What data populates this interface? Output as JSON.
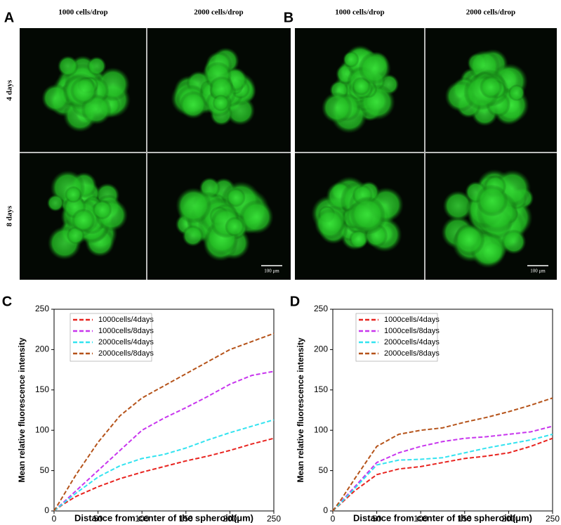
{
  "image_panels": [
    {
      "label": "A",
      "columns": [
        "1000 cells/drop",
        "2000 cells/drop"
      ],
      "rows": [
        "4 days",
        "8 days"
      ],
      "scale_bar": "100 μm"
    },
    {
      "label": "B",
      "columns": [
        "1000 cells/drop",
        "2000 cells/drop"
      ],
      "scale_bar": "100 μm"
    }
  ],
  "chart_data": [
    {
      "type": "line",
      "panel_label": "C",
      "xlabel": "Distance from center of the spheroid(μm)",
      "ylabel": "Mean relative fluorescence intensity",
      "x": [
        0,
        10,
        25,
        50,
        75,
        100,
        125,
        150,
        175,
        200,
        225,
        250
      ],
      "xlim": [
        0,
        250
      ],
      "ylim": [
        0,
        250
      ],
      "xticks": [
        0,
        50,
        100,
        150,
        200,
        250
      ],
      "yticks": [
        0,
        50,
        100,
        150,
        200,
        250
      ],
      "legend": "upper left",
      "line_style": "dashed",
      "series": [
        {
          "name": "1000cells/4days",
          "color": "#e8231f",
          "values": [
            0,
            8,
            18,
            30,
            40,
            48,
            55,
            62,
            68,
            75,
            83,
            90
          ]
        },
        {
          "name": "1000cells/8days",
          "color": "#c836ee",
          "values": [
            0,
            10,
            25,
            50,
            75,
            100,
            115,
            128,
            142,
            157,
            168,
            173
          ]
        },
        {
          "name": "2000cells/4days",
          "color": "#33e3f0",
          "values": [
            0,
            9,
            22,
            42,
            56,
            65,
            70,
            78,
            88,
            97,
            105,
            113
          ]
        },
        {
          "name": "2000cells/8days",
          "color": "#b5531a",
          "values": [
            0,
            18,
            45,
            85,
            118,
            140,
            155,
            170,
            185,
            200,
            210,
            220
          ]
        }
      ]
    },
    {
      "type": "line",
      "panel_label": "D",
      "xlabel": "Distance from center of the spheroid(μm)",
      "ylabel": "Mean relative fluorescence intensity",
      "x": [
        0,
        10,
        25,
        50,
        75,
        100,
        125,
        150,
        175,
        200,
        225,
        250
      ],
      "xlim": [
        0,
        250
      ],
      "ylim": [
        0,
        250
      ],
      "xticks": [
        0,
        50,
        100,
        150,
        200,
        250
      ],
      "yticks": [
        0,
        50,
        100,
        150,
        200,
        250
      ],
      "legend": "upper left",
      "line_style": "dashed",
      "series": [
        {
          "name": "1000cells/4days",
          "color": "#e8231f",
          "values": [
            0,
            10,
            25,
            45,
            52,
            55,
            60,
            65,
            68,
            72,
            80,
            90
          ]
        },
        {
          "name": "1000cells/8days",
          "color": "#c836ee",
          "values": [
            0,
            12,
            30,
            60,
            72,
            80,
            86,
            90,
            92,
            95,
            98,
            105
          ]
        },
        {
          "name": "2000cells/4days",
          "color": "#33e3f0",
          "values": [
            0,
            11,
            28,
            57,
            63,
            64,
            66,
            72,
            78,
            83,
            88,
            95
          ]
        },
        {
          "name": "2000cells/8days",
          "color": "#b5531a",
          "values": [
            0,
            15,
            40,
            80,
            95,
            100,
            103,
            110,
            116,
            123,
            131,
            140
          ]
        }
      ]
    }
  ]
}
